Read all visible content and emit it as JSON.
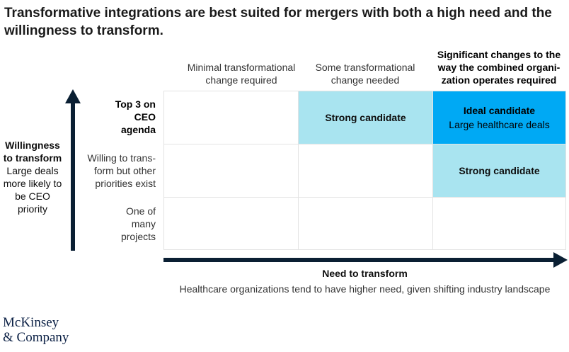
{
  "title": "Transformative integrations are best suited for mergers with both a high need and the willingness to transform.",
  "columns": [
    {
      "label": "Minimal transformational change required"
    },
    {
      "label": "Some transformational change needed"
    },
    {
      "label": "Significant changes to the way the combined organi-zation operates required"
    }
  ],
  "rows": [
    {
      "label": "Top 3 on CEO agenda"
    },
    {
      "label": "Willing to trans-form but other priorities exist"
    },
    {
      "label": "One of many projects"
    }
  ],
  "cells": {
    "r0c1": "Strong candidate",
    "r0c2_title": "Ideal candidate",
    "r0c2_sub": "Large healthcare deals",
    "r1c2": "Strong candidate"
  },
  "y_axis": {
    "title": "Willingness to transform",
    "subtitle": "Large deals more likely to be CEO priority"
  },
  "x_axis": {
    "title": "Need to transform",
    "subtitle": "Healthcare organizations tend to have higher need, given shifting industry landscape"
  },
  "brand": {
    "line1": "McKinsey",
    "line2": "& Company"
  },
  "colors": {
    "light_cell": "#a9e4f0",
    "dark_cell": "#00a9f4",
    "arrow": "#0a1f33"
  }
}
